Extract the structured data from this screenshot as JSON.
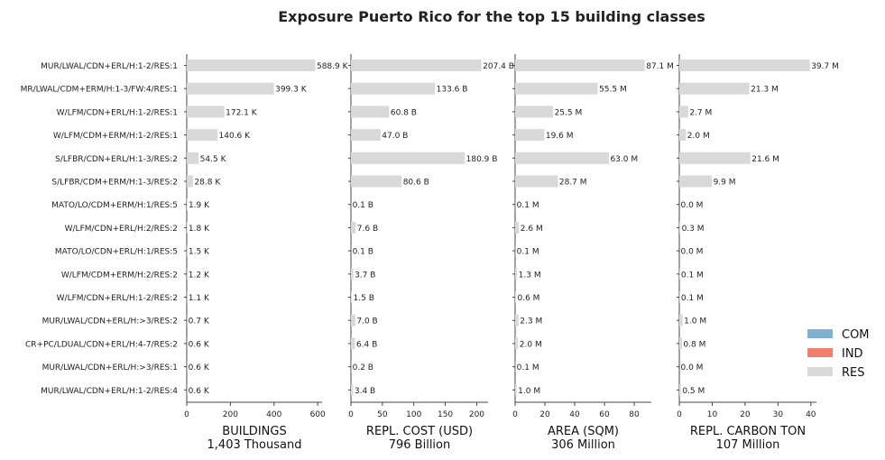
{
  "chart_data": {
    "type": "bar",
    "orientation": "horizontal",
    "title": "Exposure Puerto Rico for the top 15 building classes",
    "categories": [
      "MUR/LWAL/CDN+ERL/H:1-2/RES:1",
      "MR/LWAL/CDM+ERM/H:1-3/FW:4/RES:1",
      "W/LFM/CDN+ERL/H:1-2/RES:1",
      "W/LFM/CDM+ERM/H:1-2/RES:1",
      "S/LFBR/CDN+ERL/H:1-3/RES:2",
      "S/LFBR/CDM+ERM/H:1-3/RES:2",
      "MATO/LO/CDM+ERM/H:1/RES:5",
      "W/LFM/CDN+ERL/H:2/RES:2",
      "MATO/LO/CDN+ERL/H:1/RES:5",
      "W/LFM/CDM+ERM/H:2/RES:2",
      "W/LFM/CDN+ERL/H:1-2/RES:2",
      "MUR/LWAL/CDN+ERL/H:>3/RES:2",
      "CR+PC/LDUAL/CDN+ERL/H:4-7/RES:2",
      "MUR/LWAL/CDN+ERL/H:>3/RES:1",
      "MUR/LWAL/CDN+ERL/H:1-2/RES:4"
    ],
    "legend": {
      "placement": "bottom-right",
      "entries": [
        {
          "name": "COM",
          "color": "#82b0d2"
        },
        {
          "name": "IND",
          "color": "#f47e6e"
        },
        {
          "name": "RES",
          "color": "#d9d9d9"
        }
      ]
    },
    "panels": [
      {
        "xlabel": "BUILDINGS",
        "total": "1,403 Thousand",
        "xlim": [
          0,
          620
        ],
        "ticks": [
          0,
          200,
          400,
          600
        ],
        "values": [
          588.9,
          399.3,
          172.1,
          140.6,
          54.5,
          28.8,
          1.9,
          1.8,
          1.5,
          1.2,
          1.1,
          0.7,
          0.6,
          0.6,
          0.6
        ],
        "labels": [
          "588.9 K",
          "399.3 K",
          "172.1 K",
          "140.6 K",
          "54.5 K",
          "28.8 K",
          "1.9 K",
          "1.8 K",
          "1.5 K",
          "1.2 K",
          "1.1 K",
          "0.7 K",
          "0.6 K",
          "0.6 K",
          "0.6 K"
        ]
      },
      {
        "xlabel": "REPL. COST (USD)",
        "total": "796 Billion",
        "xlim": [
          0,
          218
        ],
        "ticks": [
          0,
          50,
          100,
          150,
          200
        ],
        "values": [
          207.4,
          133.6,
          60.8,
          47.0,
          180.9,
          80.6,
          0.1,
          7.6,
          0.1,
          3.7,
          1.5,
          7.0,
          6.4,
          0.2,
          3.4
        ],
        "labels": [
          "207.4 B",
          "133.6 B",
          "60.8 B",
          "47.0 B",
          "180.9 B",
          "80.6 B",
          "0.1 B",
          "7.6 B",
          "0.1 B",
          "3.7 B",
          "1.5 B",
          "7.0 B",
          "6.4 B",
          "0.2 B",
          "3.4 B"
        ]
      },
      {
        "xlabel": "AREA (SQM)",
        "total": "306 Million",
        "xlim": [
          0,
          91.5
        ],
        "ticks": [
          0,
          20,
          40,
          60,
          80
        ],
        "values": [
          87.1,
          55.5,
          25.5,
          19.6,
          63.0,
          28.7,
          0.1,
          2.6,
          0.1,
          1.3,
          0.6,
          2.3,
          2.0,
          0.1,
          1.0
        ],
        "labels": [
          "87.1 M",
          "55.5 M",
          "25.5 M",
          "19.6 M",
          "63.0 M",
          "28.7 M",
          "0.1 M",
          "2.6 M",
          "0.1 M",
          "1.3 M",
          "0.6 M",
          "2.3 M",
          "2.0 M",
          "0.1 M",
          "1.0 M"
        ]
      },
      {
        "xlabel": "REPL. CARBON TON",
        "total": "107 Million",
        "xlim": [
          0,
          41.7
        ],
        "ticks": [
          0,
          10,
          20,
          30,
          40
        ],
        "values": [
          39.7,
          21.3,
          2.7,
          2.0,
          21.6,
          9.9,
          0.0,
          0.3,
          0.0,
          0.1,
          0.1,
          1.0,
          0.8,
          0.0,
          0.5
        ],
        "labels": [
          "39.7 M",
          "21.3 M",
          "2.7 M",
          "2.0 M",
          "21.6 M",
          "9.9 M",
          "0.0 M",
          "0.3 M",
          "0.0 M",
          "0.1 M",
          "0.1 M",
          "1.0 M",
          "0.8 M",
          "0.0 M",
          "0.5 M"
        ]
      }
    ]
  }
}
